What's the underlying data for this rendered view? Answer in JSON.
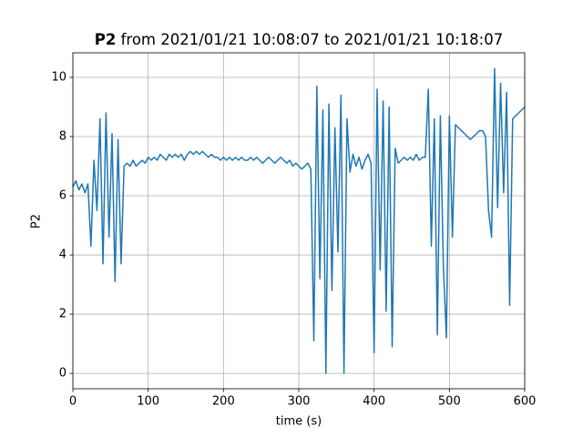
{
  "chart_data": {
    "type": "line",
    "title_name": "P2",
    "title_rest": "from 2021/01/21 10:08:07 to 2021/01/21 10:18:07",
    "x_label": "time (s)",
    "y_label": "P2",
    "color": "#1f77b4",
    "grid": true,
    "xlim": [
      0,
      600
    ],
    "ylim": [
      -0.52,
      10.83
    ],
    "xticks": [
      0,
      100,
      200,
      300,
      400,
      500,
      600
    ],
    "yticks": [
      0,
      2,
      4,
      6,
      8,
      10
    ],
    "x": [
      0,
      4,
      8,
      12,
      16,
      20,
      24,
      28,
      32,
      36,
      40,
      44,
      48,
      52,
      56,
      60,
      64,
      68,
      72,
      76,
      80,
      84,
      88,
      92,
      96,
      100,
      104,
      108,
      112,
      116,
      120,
      124,
      128,
      132,
      136,
      140,
      144,
      148,
      152,
      156,
      160,
      164,
      168,
      172,
      176,
      180,
      184,
      188,
      192,
      196,
      200,
      204,
      208,
      212,
      216,
      220,
      224,
      228,
      232,
      236,
      240,
      244,
      248,
      252,
      256,
      260,
      264,
      268,
      272,
      276,
      280,
      284,
      288,
      292,
      296,
      300,
      304,
      308,
      312,
      316,
      320,
      324,
      328,
      332,
      336,
      340,
      344,
      348,
      352,
      356,
      360,
      364,
      368,
      372,
      376,
      380,
      384,
      388,
      392,
      396,
      400,
      404,
      408,
      412,
      416,
      420,
      424,
      428,
      432,
      436,
      440,
      444,
      448,
      452,
      456,
      460,
      464,
      468,
      472,
      476,
      480,
      484,
      488,
      492,
      496,
      500,
      504,
      508,
      512,
      516,
      520,
      524,
      528,
      532,
      536,
      540,
      544,
      548,
      552,
      556,
      560,
      564,
      568,
      572,
      576,
      580,
      584,
      588,
      592,
      596,
      600
    ],
    "values": [
      6.3,
      6.5,
      6.2,
      6.4,
      6.1,
      6.4,
      4.3,
      7.2,
      5.5,
      8.6,
      3.7,
      8.8,
      4.6,
      8.1,
      3.1,
      7.9,
      3.7,
      7.0,
      7.1,
      7.0,
      7.2,
      7.0,
      7.1,
      7.2,
      7.1,
      7.3,
      7.2,
      7.3,
      7.2,
      7.4,
      7.3,
      7.2,
      7.4,
      7.3,
      7.4,
      7.3,
      7.4,
      7.2,
      7.4,
      7.5,
      7.4,
      7.5,
      7.4,
      7.5,
      7.4,
      7.3,
      7.4,
      7.3,
      7.3,
      7.2,
      7.3,
      7.2,
      7.3,
      7.2,
      7.3,
      7.2,
      7.3,
      7.2,
      7.2,
      7.3,
      7.2,
      7.3,
      7.2,
      7.1,
      7.2,
      7.3,
      7.2,
      7.1,
      7.2,
      7.3,
      7.2,
      7.1,
      7.2,
      7.0,
      7.1,
      7.0,
      6.9,
      7.0,
      7.1,
      6.9,
      1.1,
      9.7,
      3.2,
      8.9,
      0.0,
      9.1,
      2.8,
      8.3,
      4.1,
      9.4,
      0.0,
      8.6,
      6.8,
      7.4,
      7.0,
      7.3,
      6.9,
      7.2,
      7.4,
      7.1,
      0.7,
      9.6,
      3.5,
      9.2,
      2.1,
      9.0,
      0.9,
      7.6,
      7.1,
      7.2,
      7.3,
      7.2,
      7.3,
      7.2,
      7.4,
      7.2,
      7.3,
      7.3,
      9.6,
      4.3,
      8.6,
      1.3,
      8.7,
      3.6,
      1.2,
      8.7,
      4.6,
      8.4,
      8.3,
      8.2,
      8.1,
      8.0,
      7.9,
      8.0,
      8.1,
      8.2,
      8.2,
      8.0,
      5.5,
      4.6,
      10.3,
      5.6,
      9.8,
      6.1,
      9.5,
      2.3,
      8.6,
      8.7,
      8.8,
      8.9,
      9.0
    ]
  }
}
